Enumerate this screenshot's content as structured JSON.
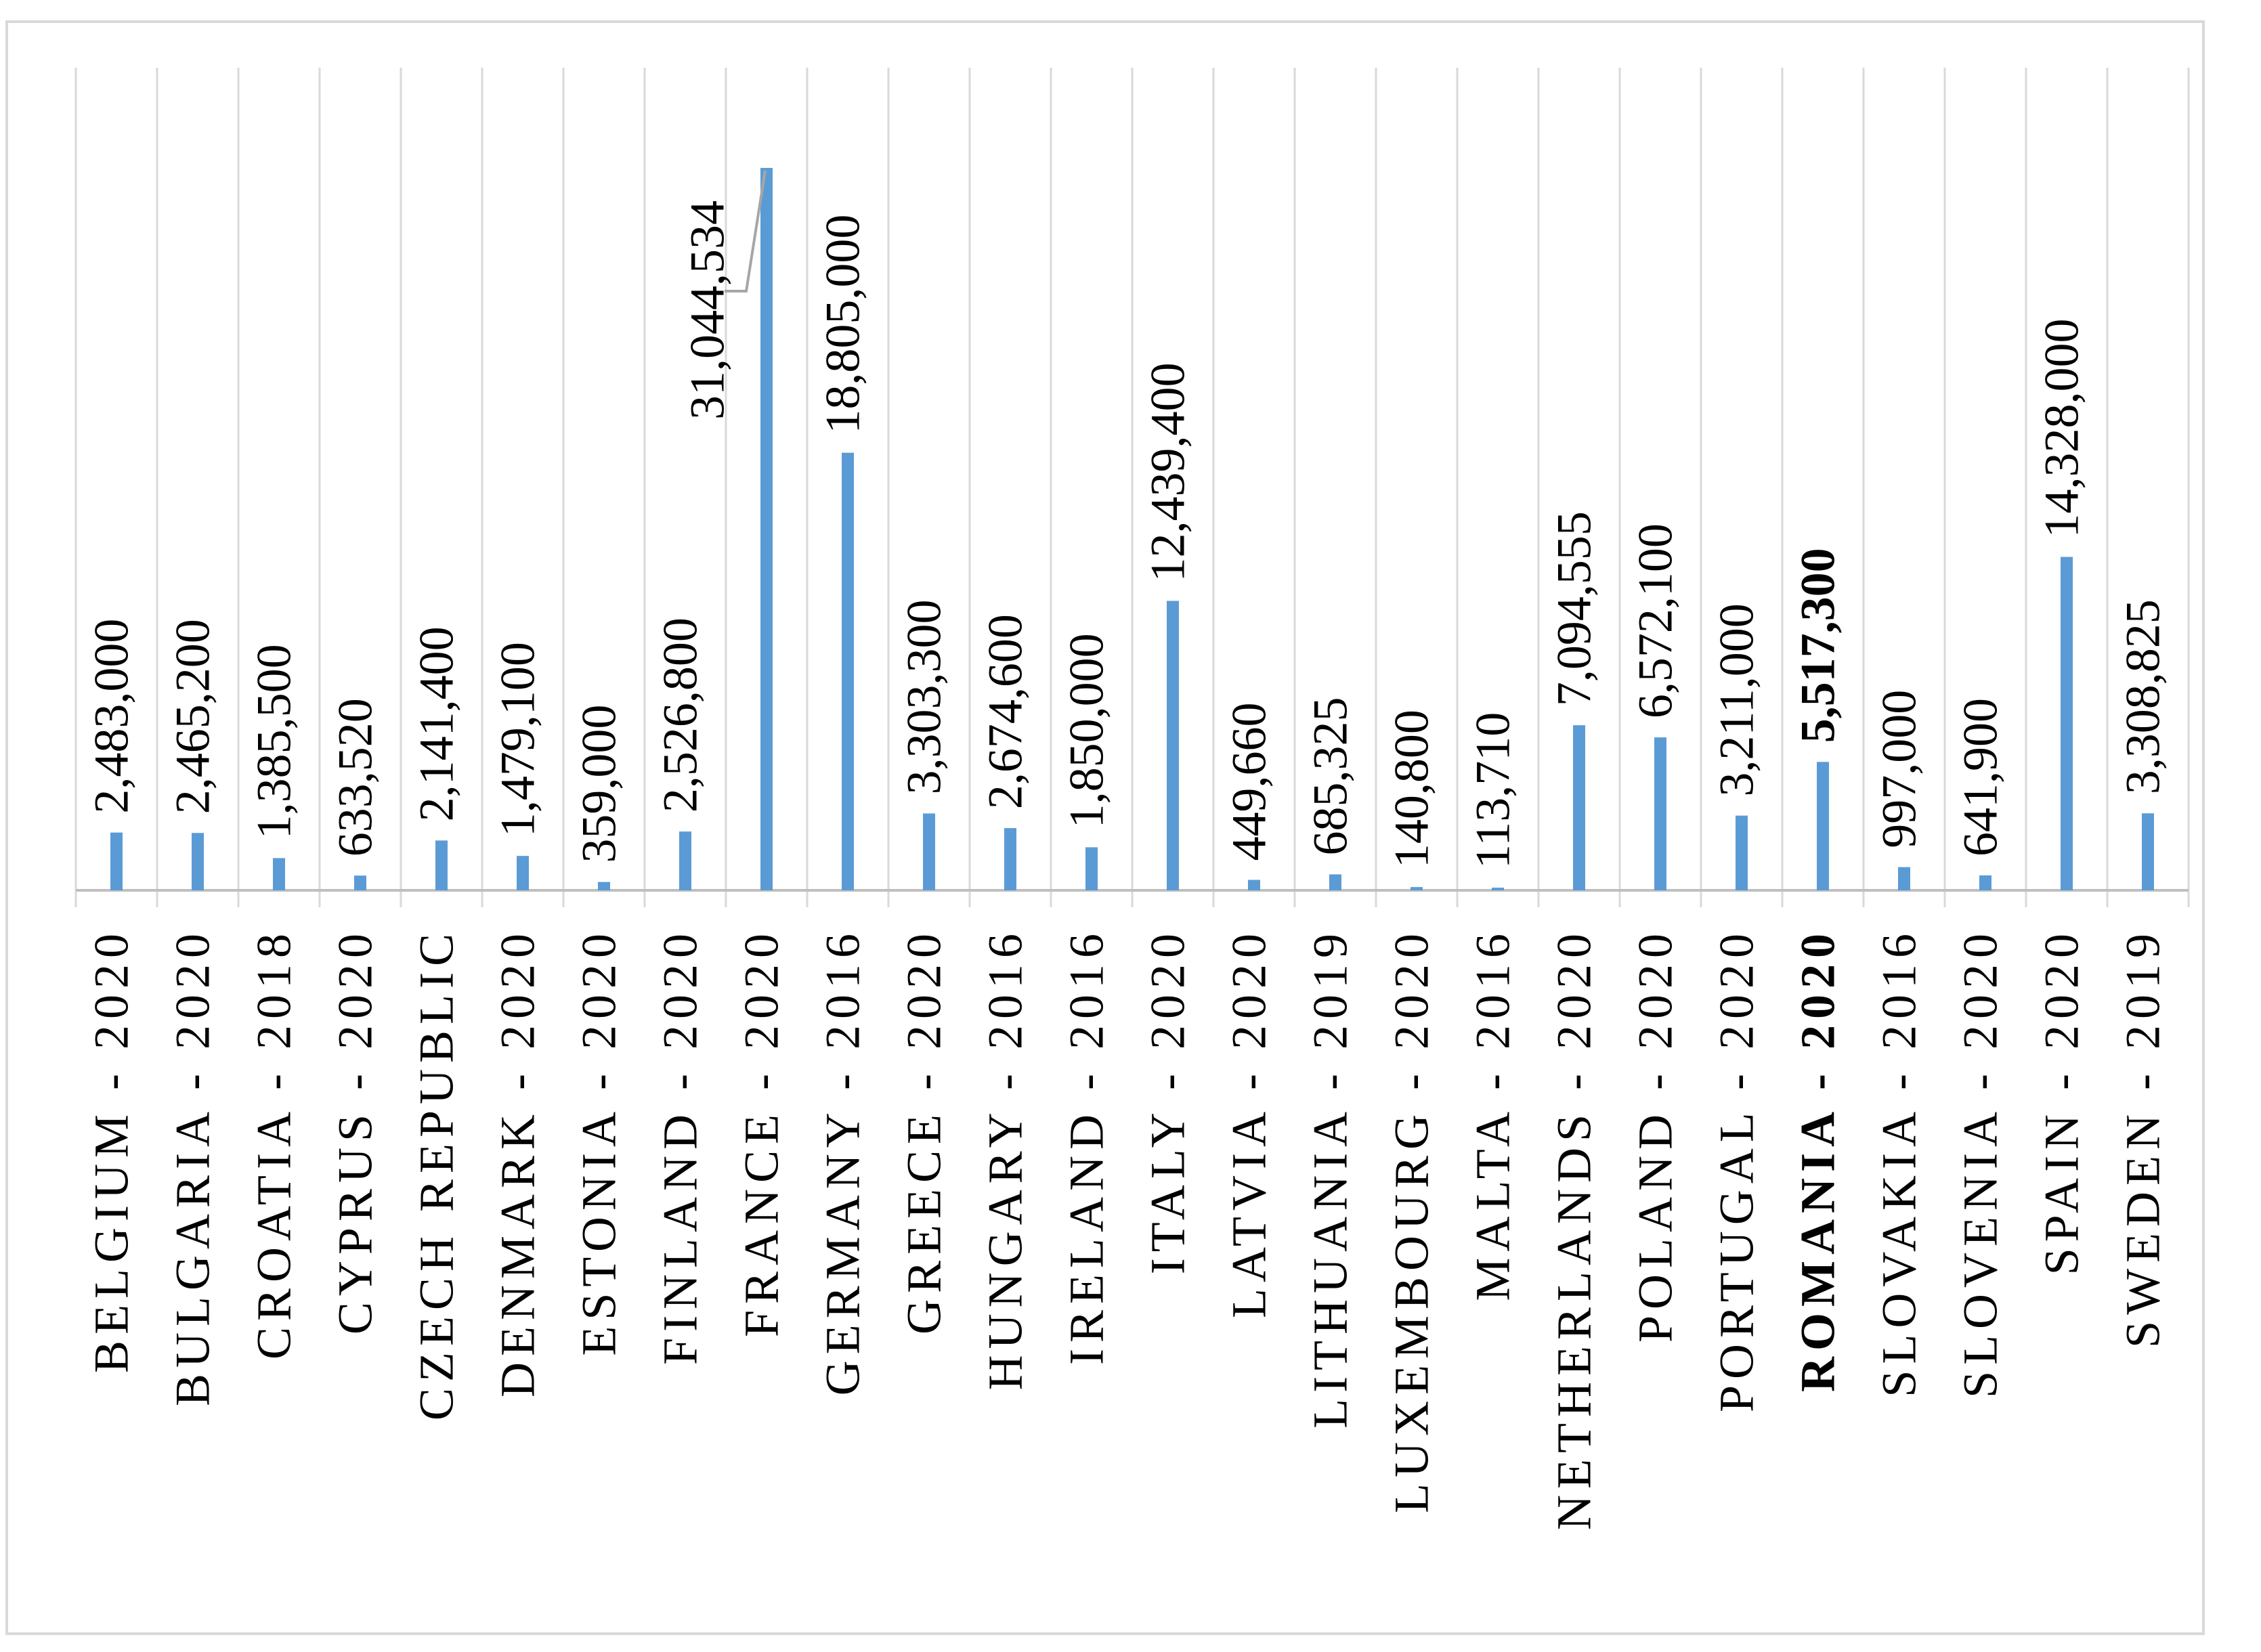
{
  "chart_data": {
    "type": "bar",
    "title": "",
    "xlabel": "",
    "ylabel": "",
    "ylim": [
      0,
      35000000
    ],
    "grid": "vertical",
    "legend": "none",
    "colors": {
      "bar": "#5b9bd5",
      "grid": "#d9d9d9",
      "frame": "#d9d9d9",
      "leader": "#a6a6a6"
    },
    "categories": [
      "BELGIUM - 2020",
      "BULGARIA - 2020",
      "CROATIA - 2018",
      "CYPRUS - 2020",
      "CZECH REPUBLIC",
      "DENMARK - 2020",
      "ESTONIA - 2020",
      "FINLAND - 2020",
      "FRANCE - 2020",
      "GERMANY - 2016",
      "GREECE - 2020",
      "HUNGARY - 2016",
      "IRELAND - 2016",
      "ITALY - 2020",
      "LATVIA - 2020",
      "LITHUANIA - 2019",
      "LUXEMBOURG - 2020",
      "MALTA - 2016",
      "NETHERLANDS - 2020",
      "POLAND - 2020",
      "PORTUGAL - 2020",
      "ROMANIA - 2020",
      "SLOVAKIA - 2016",
      "SLOVENIA - 2020",
      "SPAIN - 2020",
      "SWEDEN - 2019"
    ],
    "values": [
      2483000,
      2465200,
      1385500,
      633520,
      2141400,
      1479100,
      359000,
      2526800,
      31044534,
      18805000,
      3303300,
      2674600,
      1850000,
      12439400,
      449660,
      685325,
      140800,
      113710,
      7094555,
      6572100,
      3211000,
      5517300,
      997000,
      641900,
      14328000,
      3308825
    ],
    "value_labels": [
      "2,483,000",
      "2,465,200",
      "1,385,500",
      "633,520",
      "2,141,400",
      "1,479,100",
      "359,000",
      "2,526,800",
      "31,044,534",
      "18,805,000",
      "3,303,300",
      "2,674,600",
      "1,850,000",
      "12,439,400",
      "449,660",
      "685,325",
      "140,800",
      "113,710",
      "7,094,555",
      "6,572,100",
      "3,211,000",
      "5,517,300",
      "997,000",
      "641,900",
      "14,328,000",
      "3,308,825"
    ],
    "highlighted_category": "ROMANIA - 2020"
  }
}
